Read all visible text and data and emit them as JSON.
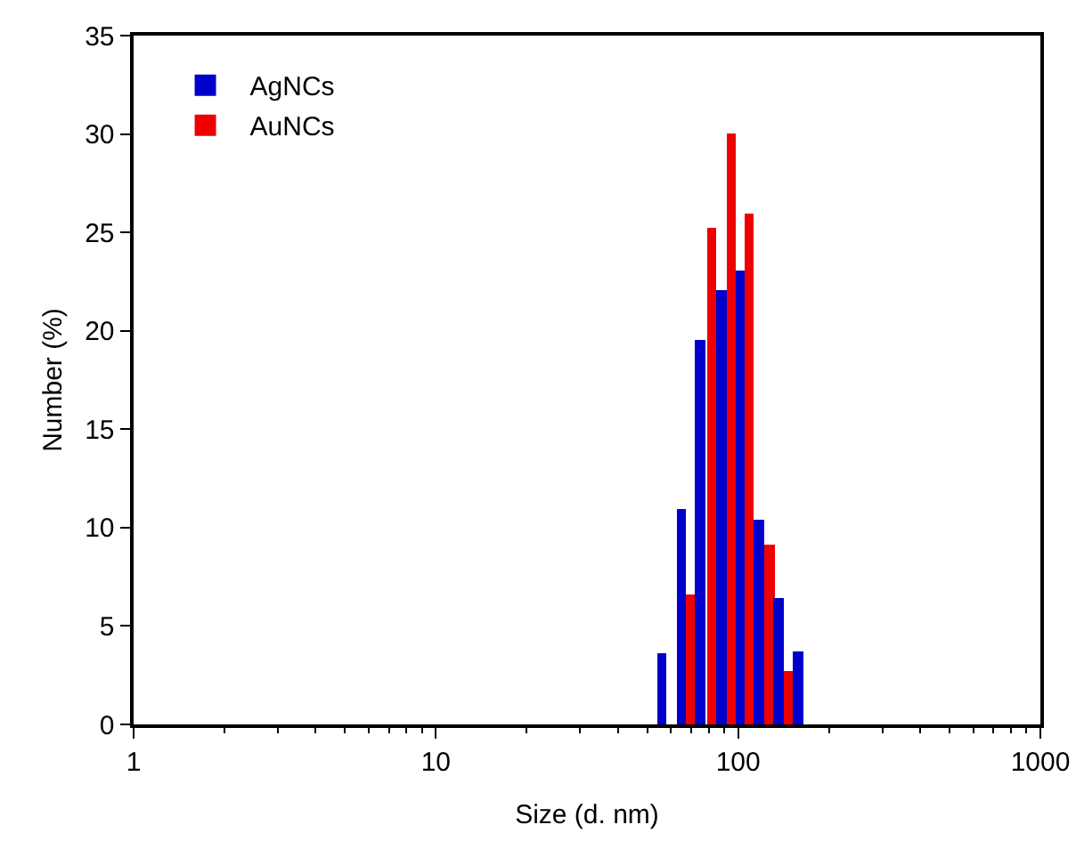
{
  "chart_data": {
    "type": "bar",
    "xlabel": "Size (d. nm)",
    "ylabel": "Number (%)",
    "log": "x",
    "xlim": [
      1,
      1000
    ],
    "xticks": [
      1,
      10,
      100,
      1000
    ],
    "ylim": [
      0,
      35
    ],
    "yticks": [
      0,
      5,
      10,
      15,
      20,
      25,
      30,
      35
    ],
    "grid": false,
    "legend": "top left",
    "series": [
      {
        "name": "AgNCs",
        "color": "#0000cc",
        "x": [
          56,
          65,
          75,
          88,
          102,
          117,
          136,
          158
        ],
        "values": [
          3.6,
          10.9,
          19.5,
          22.1,
          23.1,
          10.4,
          6.4,
          3.7
        ]
      },
      {
        "name": "AuNCs",
        "color": "#ee0000",
        "x": [
          70,
          82,
          95,
          109,
          127,
          147
        ],
        "values": [
          6.6,
          25.2,
          30,
          26,
          9.1,
          2.7
        ]
      }
    ]
  }
}
